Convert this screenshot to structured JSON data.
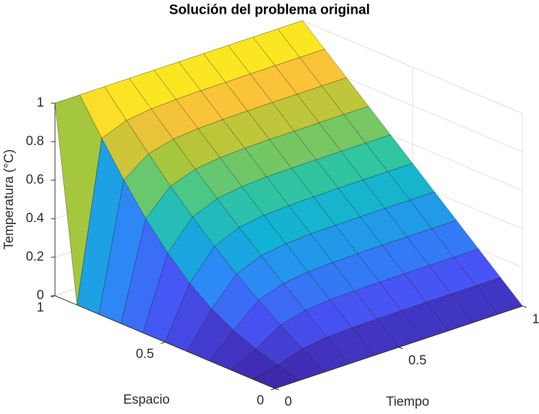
{
  "chart_data": {
    "type": "surface",
    "title": "Solución del problema original",
    "xlabel": "Tiempo",
    "ylabel": "Espacio",
    "zlabel": "Temperatura (°C)",
    "x": [
      0,
      0.1,
      0.2,
      0.3,
      0.4,
      0.5,
      0.6,
      0.7,
      0.8,
      0.9,
      1
    ],
    "y": [
      0,
      0.1,
      0.2,
      0.3,
      0.4,
      0.5,
      0.6,
      0.7,
      0.8,
      0.9,
      1
    ],
    "z": [
      [
        0,
        0,
        0,
        0,
        0,
        0,
        0,
        0,
        0,
        0,
        1
      ],
      [
        0,
        0.03,
        0.066,
        0.114,
        0.178,
        0.263,
        0.371,
        0.502,
        0.655,
        0.823,
        1
      ],
      [
        0,
        0.073,
        0.148,
        0.229,
        0.316,
        0.412,
        0.516,
        0.628,
        0.748,
        0.873,
        1
      ],
      [
        0,
        0.09,
        0.181,
        0.273,
        0.369,
        0.467,
        0.569,
        0.673,
        0.781,
        0.89,
        1
      ],
      [
        0,
        0.096,
        0.193,
        0.29,
        0.388,
        0.488,
        0.588,
        0.69,
        0.793,
        0.896,
        1
      ],
      [
        0,
        0.099,
        0.197,
        0.296,
        0.396,
        0.495,
        0.596,
        0.696,
        0.797,
        0.899,
        1
      ],
      [
        0,
        0.099,
        0.199,
        0.299,
        0.398,
        0.498,
        0.598,
        0.699,
        0.799,
        0.899,
        1
      ],
      [
        0,
        0.1,
        0.2,
        0.3,
        0.399,
        0.499,
        0.599,
        0.699,
        0.8,
        0.9,
        1
      ],
      [
        0,
        0.1,
        0.2,
        0.3,
        0.4,
        0.5,
        0.6,
        0.7,
        0.8,
        0.9,
        1
      ],
      [
        0,
        0.1,
        0.2,
        0.3,
        0.4,
        0.5,
        0.6,
        0.7,
        0.8,
        0.9,
        1
      ],
      [
        0,
        0.1,
        0.2,
        0.3,
        0.4,
        0.5,
        0.6,
        0.7,
        0.8,
        0.9,
        1
      ]
    ],
    "xlim": [
      0,
      1
    ],
    "xticks": [
      0,
      0.5,
      1
    ],
    "ylim": [
      0,
      1
    ],
    "yticks": [
      0,
      0.5,
      1
    ],
    "zlim": [
      0,
      1
    ],
    "zticks": [
      0,
      0.2,
      0.4,
      0.6,
      0.8,
      1
    ],
    "colormap": "parula",
    "grid": true
  }
}
